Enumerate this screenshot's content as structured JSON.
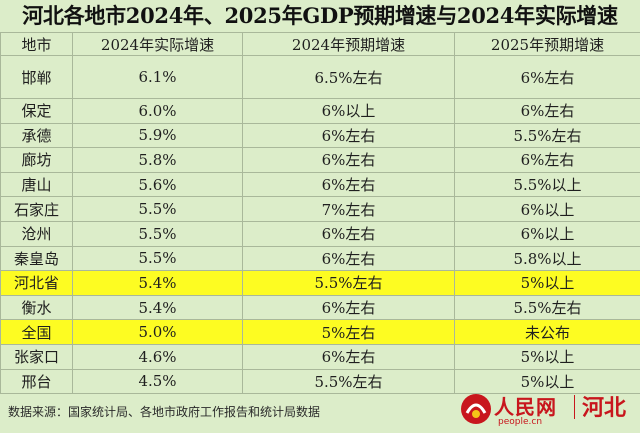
{
  "title": "河北各地市2024年、2025年GDP预期增速与2024年实际增速",
  "table": {
    "headers": [
      "地市",
      "2024年实际增速",
      "2024年预期增速",
      "2025年预期增速"
    ],
    "rows": [
      {
        "city": "邯郸",
        "actual_2024": "6.1%",
        "target_2024": "6.5%左右",
        "target_2025": "6%左右",
        "highlight": false
      },
      {
        "city": "保定",
        "actual_2024": "6.0%",
        "target_2024": "6%以上",
        "target_2025": "6%左右",
        "highlight": false
      },
      {
        "city": "承德",
        "actual_2024": "5.9%",
        "target_2024": "6%左右",
        "target_2025": "5.5%左右",
        "highlight": false
      },
      {
        "city": "廊坊",
        "actual_2024": "5.8%",
        "target_2024": "6%左右",
        "target_2025": "6%左右",
        "highlight": false
      },
      {
        "city": "唐山",
        "actual_2024": "5.6%",
        "target_2024": "6%左右",
        "target_2025": "5.5%以上",
        "highlight": false
      },
      {
        "city": "石家庄",
        "actual_2024": "5.5%",
        "target_2024": "7%左右",
        "target_2025": "6%以上",
        "highlight": false
      },
      {
        "city": "沧州",
        "actual_2024": "5.5%",
        "target_2024": "6%左右",
        "target_2025": "6%以上",
        "highlight": false
      },
      {
        "city": "秦皇岛",
        "actual_2024": "5.5%",
        "target_2024": "6%左右",
        "target_2025": "5.8%以上",
        "highlight": false
      },
      {
        "city": "河北省",
        "actual_2024": "5.4%",
        "target_2024": "5.5%左右",
        "target_2025": "5%以上",
        "highlight": true
      },
      {
        "city": "衡水",
        "actual_2024": "5.4%",
        "target_2024": "6%左右",
        "target_2025": "5.5%左右",
        "highlight": false
      },
      {
        "city": "全国",
        "actual_2024": "5.0%",
        "target_2024": "5%左右",
        "target_2025": "未公布",
        "highlight": true
      },
      {
        "city": "张家口",
        "actual_2024": "4.6%",
        "target_2024": "6%左右",
        "target_2025": "5%以上",
        "highlight": false
      },
      {
        "city": "邢台",
        "actual_2024": "4.5%",
        "target_2024": "5.5%左右",
        "target_2025": "5%以上",
        "highlight": false
      }
    ]
  },
  "footer": {
    "source": "数据来源：国家统计局、各地市政府工作报告和统计局数据"
  },
  "logo": {
    "brand": "人民网",
    "region": "河北",
    "url": "people.cn",
    "brand_color": "#c8161d"
  },
  "colors": {
    "background": "#dcedc9",
    "highlight": "#fdfc22"
  }
}
